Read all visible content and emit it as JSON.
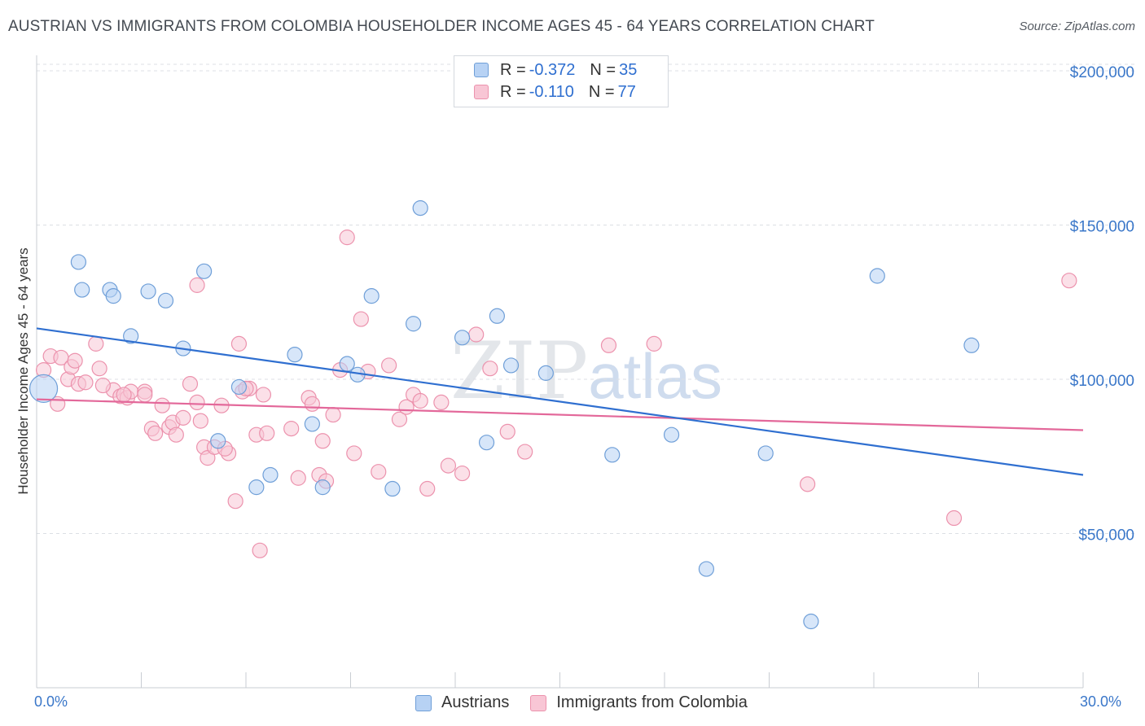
{
  "title": "AUSTRIAN VS IMMIGRANTS FROM COLOMBIA HOUSEHOLDER INCOME AGES 45 - 64 YEARS CORRELATION CHART",
  "source": "Source: ZipAtlas.com",
  "watermark": {
    "zip": "ZIP",
    "atlas": "atlas"
  },
  "legend": {
    "series": [
      {
        "r_label": "R = ",
        "r_value": "-0.372",
        "n_label": "N = ",
        "n_value": "35"
      },
      {
        "r_label": "R = ",
        "r_value": "-0.110",
        "n_label": "N = ",
        "n_value": "77"
      }
    ]
  },
  "colors": {
    "blue_fill": "#b7d2f4",
    "blue_stroke": "#6f9fd8",
    "blue_line": "#2f6fd0",
    "pink_fill": "#f8c6d5",
    "pink_stroke": "#ec92ad",
    "pink_line": "#e3689a",
    "grid": "#dcdfe4",
    "axis_text": "#3a77c9"
  },
  "chart_data": {
    "type": "scatter",
    "title": "AUSTRIAN VS IMMIGRANTS FROM COLOMBIA HOUSEHOLDER INCOME AGES 45 - 64 YEARS CORRELATION CHART",
    "xlabel": "",
    "ylabel": "Householder Income Ages 45 - 64 years",
    "xlim": [
      0,
      30
    ],
    "ylim": [
      0,
      205000
    ],
    "x_tick_labels": [
      "0.0%",
      "30.0%"
    ],
    "y_ticks": [
      50000,
      100000,
      150000,
      200000
    ],
    "y_tick_labels": [
      "$50,000",
      "$100,000",
      "$150,000",
      "$200,000"
    ],
    "series": [
      {
        "name": "Austrians",
        "trend": {
          "x": [
            0,
            30
          ],
          "y": [
            116500,
            69000
          ]
        },
        "points": [
          [
            0.2,
            97000,
            "big"
          ],
          [
            1.3,
            129000
          ],
          [
            1.2,
            138000
          ],
          [
            2.1,
            129000
          ],
          [
            2.2,
            127000
          ],
          [
            2.7,
            114000
          ],
          [
            3.2,
            128500
          ],
          [
            3.7,
            125500
          ],
          [
            4.2,
            110000
          ],
          [
            4.8,
            135000
          ],
          [
            5.2,
            80000
          ],
          [
            5.8,
            97500
          ],
          [
            6.3,
            65000
          ],
          [
            6.7,
            69000
          ],
          [
            7.4,
            108000
          ],
          [
            7.9,
            85500
          ],
          [
            8.2,
            65000
          ],
          [
            8.9,
            105000
          ],
          [
            9.2,
            101500
          ],
          [
            9.6,
            127000
          ],
          [
            10.2,
            64500
          ],
          [
            10.8,
            118000
          ],
          [
            11.0,
            155500
          ],
          [
            12.2,
            113500
          ],
          [
            12.9,
            79500
          ],
          [
            13.2,
            120500
          ],
          [
            13.6,
            104500
          ],
          [
            14.6,
            102000
          ],
          [
            16.5,
            75500
          ],
          [
            18.2,
            82000
          ],
          [
            19.2,
            38500
          ],
          [
            20.9,
            76000
          ],
          [
            22.2,
            21500
          ],
          [
            24.1,
            133500
          ],
          [
            26.8,
            111000
          ]
        ]
      },
      {
        "name": "Immigrants from Colombia",
        "trend": {
          "x": [
            0,
            30
          ],
          "y": [
            93500,
            83500
          ]
        },
        "points": [
          [
            0.2,
            103000
          ],
          [
            0.4,
            107500
          ],
          [
            0.6,
            92000
          ],
          [
            0.7,
            107000
          ],
          [
            0.9,
            100000
          ],
          [
            1.0,
            104000
          ],
          [
            1.1,
            106000
          ],
          [
            1.2,
            98500
          ],
          [
            1.4,
            99000
          ],
          [
            1.7,
            111500
          ],
          [
            1.8,
            103500
          ],
          [
            2.2,
            96500
          ],
          [
            2.4,
            94500
          ],
          [
            2.6,
            94000
          ],
          [
            2.7,
            96000
          ],
          [
            3.1,
            96000
          ],
          [
            3.3,
            84000
          ],
          [
            3.4,
            82500
          ],
          [
            3.6,
            91500
          ],
          [
            3.8,
            84500
          ],
          [
            3.9,
            86000
          ],
          [
            4.0,
            82000
          ],
          [
            4.2,
            87500
          ],
          [
            4.4,
            98500
          ],
          [
            4.6,
            92500
          ],
          [
            4.7,
            86500
          ],
          [
            4.8,
            78000
          ],
          [
            4.9,
            74500
          ],
          [
            5.1,
            78000
          ],
          [
            5.3,
            91500
          ],
          [
            5.5,
            76000
          ],
          [
            5.7,
            60500
          ],
          [
            5.8,
            111500
          ],
          [
            5.9,
            96000
          ],
          [
            6.1,
            97000
          ],
          [
            6.3,
            82000
          ],
          [
            6.4,
            44500
          ],
          [
            6.5,
            95000
          ],
          [
            6.6,
            82500
          ],
          [
            7.3,
            84000
          ],
          [
            7.5,
            68000
          ],
          [
            7.8,
            94000
          ],
          [
            7.9,
            92000
          ],
          [
            8.1,
            69000
          ],
          [
            8.2,
            80000
          ],
          [
            8.3,
            67000
          ],
          [
            8.5,
            88500
          ],
          [
            8.7,
            103000
          ],
          [
            8.9,
            146000
          ],
          [
            9.1,
            76000
          ],
          [
            9.3,
            119500
          ],
          [
            9.5,
            102500
          ],
          [
            9.8,
            70000
          ],
          [
            10.1,
            104500
          ],
          [
            10.4,
            87000
          ],
          [
            10.6,
            91000
          ],
          [
            10.8,
            95000
          ],
          [
            11.0,
            93000
          ],
          [
            11.2,
            64500
          ],
          [
            11.6,
            92500
          ],
          [
            11.8,
            72000
          ],
          [
            12.2,
            69500
          ],
          [
            12.6,
            114500
          ],
          [
            13.0,
            103500
          ],
          [
            13.5,
            83000
          ],
          [
            14.0,
            76500
          ],
          [
            16.4,
            111000
          ],
          [
            17.7,
            111500
          ],
          [
            22.1,
            66000
          ],
          [
            26.3,
            55000
          ],
          [
            29.6,
            132000
          ],
          [
            4.6,
            130500
          ],
          [
            3.1,
            95000
          ],
          [
            2.5,
            95000
          ],
          [
            6.0,
            97000
          ],
          [
            5.4,
            77500
          ],
          [
            1.9,
            98000
          ]
        ]
      }
    ]
  },
  "bottom_legend": [
    "Austrians",
    "Immigrants from Colombia"
  ]
}
